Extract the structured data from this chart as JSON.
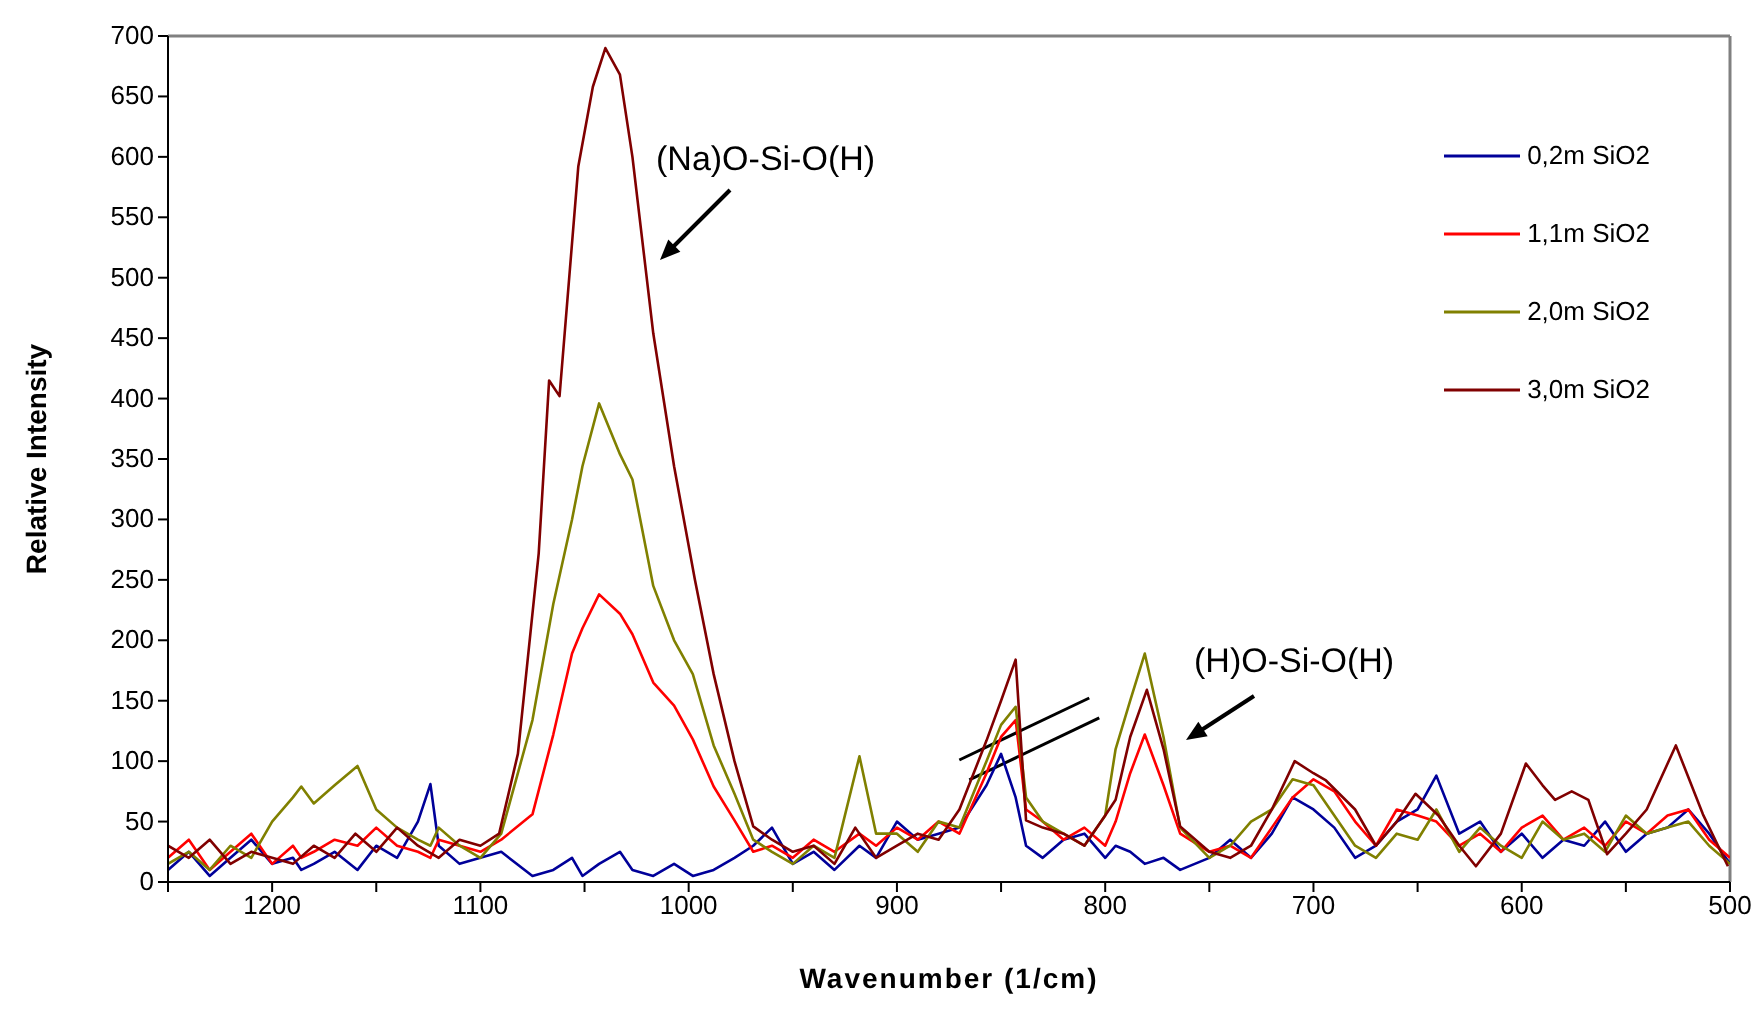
{
  "chart_data": {
    "type": "line",
    "xlabel": "Wavenumber (1/cm)",
    "ylabel": "Relative Intensity",
    "xlim": [
      1250,
      500
    ],
    "ylim": [
      0,
      700
    ],
    "xticks": [
      {
        "value": 1250,
        "label": null
      },
      1200,
      {
        "value": 1150,
        "label": null
      },
      1100,
      {
        "value": 1050,
        "label": null
      },
      1000,
      {
        "value": 950,
        "label": null
      },
      900,
      {
        "value": 850,
        "label": null
      },
      800,
      {
        "value": 750,
        "label": null
      },
      700,
      {
        "value": 650,
        "label": null
      },
      600,
      {
        "value": 550,
        "label": null
      },
      500
    ],
    "yticks": [
      0,
      50,
      100,
      150,
      200,
      250,
      300,
      350,
      400,
      450,
      500,
      550,
      600,
      650,
      700
    ],
    "grid": false,
    "legend": "top right",
    "marker": "none",
    "line_style": "solid",
    "annotations": [
      "(Na)O-Si-O(H)",
      "(H)O-Si-O(H)"
    ],
    "x": [
      1250,
      1240,
      1230,
      1220,
      1210,
      1200,
      1190,
      1186,
      1180,
      1170,
      1159,
      1150,
      1140,
      1130,
      1124,
      1120,
      1110,
      1100,
      1090,
      1075,
      1065,
      1056,
      1051,
      1043,
      1033,
      1027,
      1017,
      1007,
      998,
      988,
      978,
      969,
      960,
      950,
      940,
      930,
      918,
      910,
      900,
      890,
      880,
      870,
      857,
      850,
      843,
      838,
      830,
      820,
      810,
      800,
      795,
      788,
      781,
      772,
      764,
      750,
      740,
      730,
      720,
      710,
      700,
      690,
      680,
      670,
      660,
      650,
      641,
      630,
      620,
      610,
      600,
      590,
      580,
      570,
      560,
      550,
      540,
      530,
      520,
      510,
      500
    ],
    "series": [
      {
        "name": "0,2m SiO2",
        "color": "#000099",
        "values": [
          10,
          25,
          5,
          20,
          35,
          15,
          20,
          10,
          15,
          25,
          10,
          30,
          20,
          50,
          81,
          30,
          15,
          20,
          25,
          5,
          10,
          20,
          5,
          15,
          25,
          10,
          5,
          15,
          5,
          10,
          20,
          30,
          45,
          15,
          25,
          10,
          30,
          20,
          50,
          35,
          40,
          45,
          80,
          106,
          70,
          30,
          20,
          35,
          40,
          20,
          30,
          25,
          15,
          20,
          10,
          20,
          35,
          20,
          40,
          70,
          60,
          45,
          20,
          30,
          50,
          60,
          88,
          40,
          50,
          25,
          40,
          20,
          35,
          30,
          50,
          25,
          40,
          45,
          60,
          40,
          15
        ]
      },
      {
        "name": "1,1m SiO2",
        "color": "#ff0000",
        "values": [
          20,
          35,
          10,
          25,
          40,
          15,
          30,
          20,
          25,
          35,
          30,
          45,
          30,
          25,
          20,
          35,
          30,
          25,
          35,
          56,
          122,
          189,
          210,
          238,
          222,
          205,
          165,
          146,
          118,
          79,
          51,
          25,
          30,
          20,
          35,
          25,
          40,
          30,
          45,
          35,
          50,
          40,
          90,
          120,
          134,
          60,
          50,
          35,
          45,
          30,
          50,
          90,
          122,
          80,
          40,
          25,
          30,
          20,
          45,
          70,
          85,
          75,
          50,
          30,
          60,
          55,
          50,
          30,
          40,
          25,
          45,
          55,
          35,
          45,
          30,
          50,
          40,
          55,
          60,
          35,
          20
        ]
      },
      {
        "name": "2,0m SiO2",
        "color": "#808000",
        "values": [
          15,
          25,
          10,
          30,
          20,
          50,
          70,
          79,
          65,
          80,
          96,
          60,
          45,
          35,
          30,
          45,
          30,
          20,
          40,
          134,
          230,
          300,
          344,
          396,
          354,
          333,
          245,
          200,
          172,
          113,
          73,
          35,
          25,
          15,
          30,
          20,
          104,
          40,
          40,
          25,
          50,
          45,
          100,
          130,
          145,
          70,
          50,
          40,
          30,
          55,
          110,
          150,
          189,
          120,
          45,
          20,
          30,
          50,
          60,
          85,
          80,
          55,
          30,
          20,
          40,
          35,
          60,
          25,
          45,
          30,
          20,
          50,
          35,
          40,
          25,
          55,
          40,
          45,
          50,
          30,
          15
        ]
      },
      {
        "name": "3,0m SiO2",
        "color": "#800000",
        "x": [
          1250,
          1240,
          1230,
          1220,
          1210,
          1200,
          1190,
          1180,
          1170,
          1160,
          1150,
          1140,
          1130,
          1120,
          1110,
          1100,
          1091,
          1082,
          1072,
          1067,
          1062,
          1053,
          1046,
          1040,
          1033,
          1027,
          1017,
          1007,
          997,
          988,
          978,
          969,
          960,
          950,
          940,
          930,
          920,
          910,
          900,
          890,
          880,
          870,
          857,
          850,
          843,
          838,
          830,
          820,
          810,
          800,
          795,
          788,
          780,
          772,
          764,
          750,
          740,
          730,
          720,
          709,
          700,
          694,
          680,
          670,
          660,
          651,
          640,
          630,
          622,
          610,
          598,
          590,
          584,
          576,
          568,
          559,
          550,
          540,
          526,
          513,
          501
        ],
        "values": [
          30,
          20,
          35,
          15,
          25,
          20,
          15,
          30,
          20,
          40,
          25,
          45,
          30,
          20,
          35,
          30,
          40,
          106,
          272,
          415,
          402,
          592,
          658,
          690,
          668,
          600,
          454,
          344,
          250,
          172,
          100,
          46,
          35,
          25,
          30,
          15,
          45,
          20,
          30,
          40,
          35,
          60,
          117,
          150,
          184,
          51,
          45,
          40,
          30,
          55,
          68,
          120,
          159,
          110,
          46,
          25,
          20,
          30,
          60,
          100,
          90,
          84,
          60,
          30,
          50,
          73,
          55,
          30,
          13,
          40,
          98,
          80,
          68,
          75,
          68,
          23,
          40,
          60,
          113,
          56,
          13
        ]
      }
    ]
  }
}
